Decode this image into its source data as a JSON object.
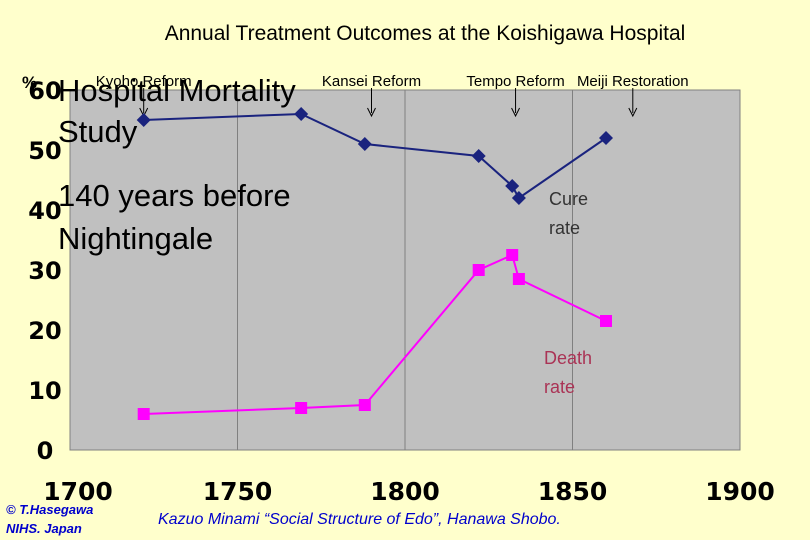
{
  "chart_data": {
    "type": "line",
    "title": "Annual Treatment Outcomes at the Koishigawa Hospital",
    "y_unit": "%",
    "xlim": [
      1700,
      1900
    ],
    "ylim": [
      0,
      60
    ],
    "x_ticks": [
      "1700",
      "1750",
      "1800",
      "1850",
      "1900"
    ],
    "y_ticks": [
      "0",
      "10",
      "20",
      "30",
      "40",
      "50",
      "60"
    ],
    "grid": "vertical",
    "series": [
      {
        "name": "Cure rate",
        "label_lines": [
          "Cure",
          "rate"
        ],
        "color": "#1a237e",
        "marker": "diamond",
        "x": [
          1722,
          1769,
          1788,
          1822,
          1832,
          1834,
          1860
        ],
        "y": [
          55,
          56,
          51,
          49,
          44,
          42,
          52
        ]
      },
      {
        "name": "Death rate",
        "label_lines": [
          "Death",
          "rate"
        ],
        "color": "#ff00ff",
        "marker": "square",
        "x": [
          1722,
          1769,
          1788,
          1822,
          1832,
          1834,
          1860
        ],
        "y": [
          6,
          7,
          7.5,
          30,
          32.5,
          28.5,
          21.5
        ]
      }
    ],
    "events": [
      {
        "label": "Kyoho Reform",
        "x": 1722
      },
      {
        "label": "Kansei Reform",
        "x": 1790
      },
      {
        "label": "Tempo Reform",
        "x": 1833
      },
      {
        "label": "Meiji Restoration",
        "x": 1868
      }
    ],
    "overlay_text": [
      "Hospital Mortality",
      "Study",
      "140 years before",
      "Nightingale"
    ],
    "source": "Kazuo Minami “Social Structure of Edo”, Hanawa Shobo.",
    "credit": [
      "© T.Hasegawa",
      "NIHS. Japan"
    ]
  }
}
